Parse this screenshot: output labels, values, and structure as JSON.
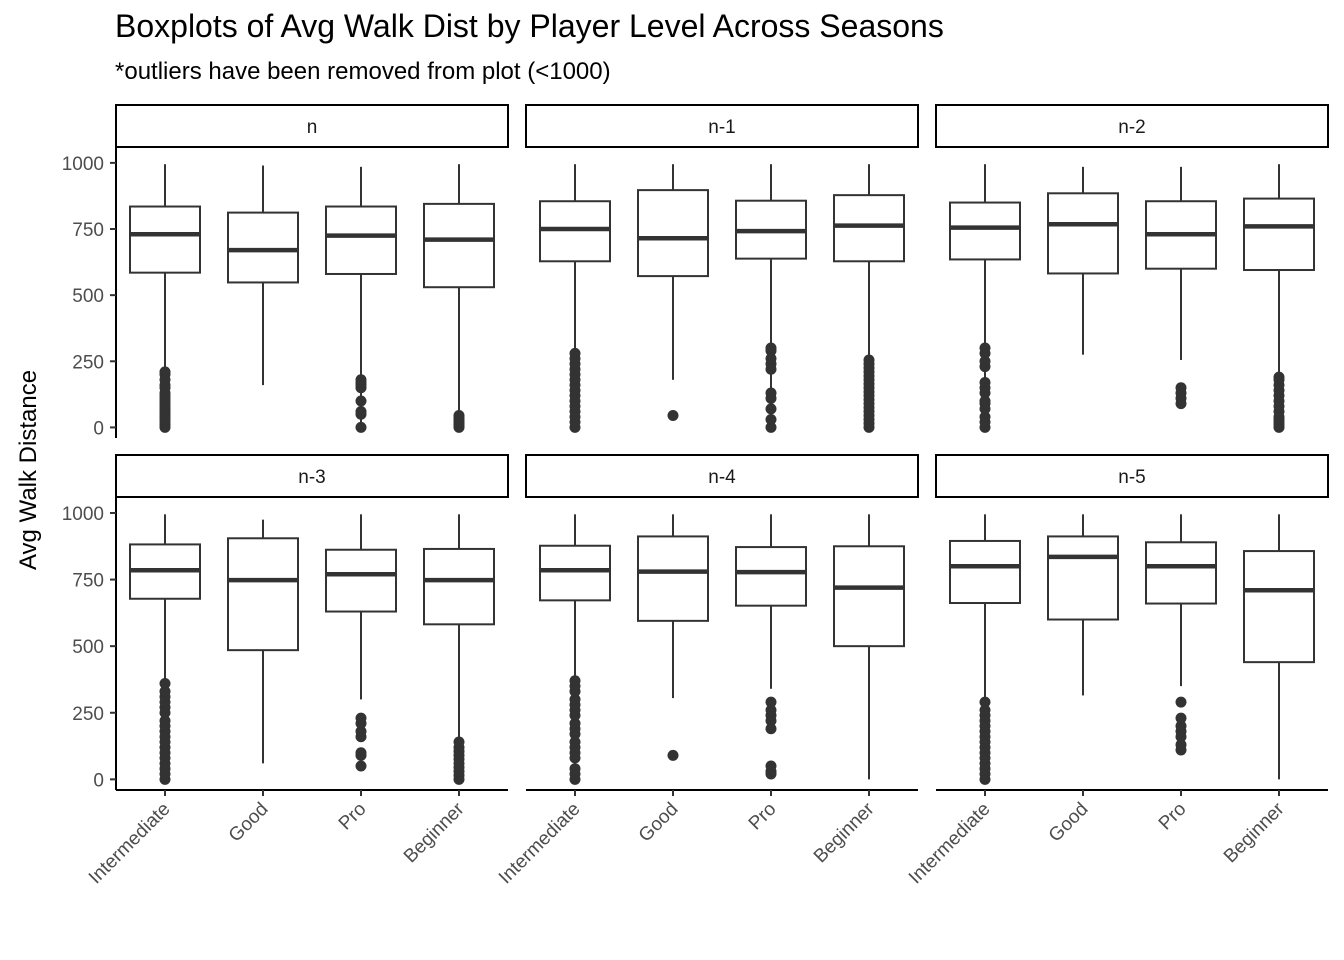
{
  "chart_data": {
    "type": "boxplot",
    "title": "Boxplots of Avg Walk Dist by Player Level Across Seasons",
    "subtitle": "*outliers have been removed from plot (<1000)",
    "ylabel": "Avg Walk Distance",
    "xlabel": "",
    "ylim": [
      -40,
      1060
    ],
    "yticks": [
      0,
      250,
      500,
      750,
      1000
    ],
    "categories": [
      "Intermediate",
      "Good",
      "Pro",
      "Beginner"
    ],
    "grid": false,
    "facets": [
      {
        "label": "n",
        "boxes": [
          {
            "category": "Intermediate",
            "min": 0,
            "q1": 585,
            "median": 730,
            "q3": 835,
            "max": 995,
            "outliers": [
              0,
              10,
              20,
              30,
              40,
              50,
              60,
              70,
              80,
              90,
              100,
              110,
              120,
              130,
              150,
              160,
              180,
              200,
              210
            ]
          },
          {
            "category": "Good",
            "min": 160,
            "q1": 548,
            "median": 670,
            "q3": 812,
            "max": 990,
            "outliers": []
          },
          {
            "category": "Pro",
            "min": 0,
            "q1": 580,
            "median": 725,
            "q3": 835,
            "max": 985,
            "outliers": [
              0,
              50,
              60,
              100,
              150,
              160,
              170,
              180
            ]
          },
          {
            "category": "Beginner",
            "min": 0,
            "q1": 530,
            "median": 710,
            "q3": 845,
            "max": 995,
            "outliers": [
              0,
              5,
              10,
              15,
              20,
              25,
              30,
              40,
              45
            ]
          }
        ]
      },
      {
        "label": "n-1",
        "boxes": [
          {
            "category": "Intermediate",
            "min": 0,
            "q1": 628,
            "median": 750,
            "q3": 855,
            "max": 995,
            "outliers": [
              0,
              20,
              40,
              60,
              80,
              100,
              120,
              140,
              160,
              180,
              200,
              220,
              240,
              260,
              280
            ]
          },
          {
            "category": "Good",
            "min": 180,
            "q1": 572,
            "median": 715,
            "q3": 897,
            "max": 995,
            "outliers": [
              45
            ]
          },
          {
            "category": "Pro",
            "min": 0,
            "q1": 638,
            "median": 742,
            "q3": 857,
            "max": 995,
            "outliers": [
              0,
              30,
              70,
              110,
              130,
              220,
              240,
              260,
              290,
              300
            ]
          },
          {
            "category": "Beginner",
            "min": 0,
            "q1": 628,
            "median": 763,
            "q3": 878,
            "max": 995,
            "outliers": [
              0,
              15,
              30,
              45,
              60,
              75,
              90,
              105,
              120,
              135,
              150,
              165,
              180,
              195,
              210,
              225,
              240,
              255
            ]
          }
        ]
      },
      {
        "label": "n-2",
        "boxes": [
          {
            "category": "Intermediate",
            "min": 0,
            "q1": 635,
            "median": 755,
            "q3": 850,
            "max": 995,
            "outliers": [
              0,
              20,
              40,
              70,
              90,
              100,
              130,
              150,
              170,
              230,
              250,
              280,
              300
            ]
          },
          {
            "category": "Good",
            "min": 275,
            "q1": 582,
            "median": 768,
            "q3": 885,
            "max": 985,
            "outliers": []
          },
          {
            "category": "Pro",
            "min": 255,
            "q1": 600,
            "median": 730,
            "q3": 855,
            "max": 985,
            "outliers": [
              90,
              110,
              130,
              150
            ]
          },
          {
            "category": "Beginner",
            "min": 0,
            "q1": 595,
            "median": 760,
            "q3": 865,
            "max": 995,
            "outliers": [
              0,
              10,
              20,
              30,
              40,
              60,
              80,
              100,
              120,
              140,
              160,
              180,
              190
            ]
          }
        ]
      },
      {
        "label": "n-3",
        "boxes": [
          {
            "category": "Intermediate",
            "min": 0,
            "q1": 678,
            "median": 785,
            "q3": 882,
            "max": 995,
            "outliers": [
              0,
              20,
              40,
              60,
              80,
              100,
              120,
              140,
              160,
              180,
              200,
              220,
              250,
              270,
              290,
              310,
              330,
              360
            ]
          },
          {
            "category": "Good",
            "min": 60,
            "q1": 485,
            "median": 748,
            "q3": 905,
            "max": 975,
            "outliers": []
          },
          {
            "category": "Pro",
            "min": 300,
            "q1": 630,
            "median": 770,
            "q3": 862,
            "max": 995,
            "outliers": [
              50,
              90,
              100,
              160,
              180,
              210,
              230
            ]
          },
          {
            "category": "Beginner",
            "min": 150,
            "q1": 582,
            "median": 748,
            "q3": 865,
            "max": 995,
            "outliers": [
              0,
              15,
              30,
              45,
              60,
              75,
              90,
              105,
              120,
              140
            ]
          }
        ]
      },
      {
        "label": "n-4",
        "boxes": [
          {
            "category": "Intermediate",
            "min": 0,
            "q1": 672,
            "median": 785,
            "q3": 877,
            "max": 995,
            "outliers": [
              0,
              20,
              40,
              80,
              100,
              120,
              140,
              170,
              190,
              210,
              240,
              260,
              280,
              300,
              330,
              350,
              370
            ]
          },
          {
            "category": "Good",
            "min": 305,
            "q1": 595,
            "median": 780,
            "q3": 912,
            "max": 995,
            "outliers": [
              90
            ]
          },
          {
            "category": "Pro",
            "min": 340,
            "q1": 652,
            "median": 778,
            "q3": 872,
            "max": 995,
            "outliers": [
              20,
              30,
              50,
              190,
              220,
              240,
              260,
              290
            ]
          },
          {
            "category": "Beginner",
            "min": 0,
            "q1": 500,
            "median": 720,
            "q3": 875,
            "max": 995,
            "outliers": []
          }
        ]
      },
      {
        "label": "n-5",
        "boxes": [
          {
            "category": "Intermediate",
            "min": 0,
            "q1": 662,
            "median": 800,
            "q3": 895,
            "max": 995,
            "outliers": [
              0,
              20,
              40,
              60,
              80,
              100,
              120,
              140,
              160,
              180,
              200,
              220,
              240,
              260,
              290
            ]
          },
          {
            "category": "Good",
            "min": 315,
            "q1": 600,
            "median": 835,
            "q3": 912,
            "max": 995,
            "outliers": []
          },
          {
            "category": "Pro",
            "min": 350,
            "q1": 660,
            "median": 800,
            "q3": 890,
            "max": 995,
            "outliers": [
              110,
              130,
              160,
              180,
              200,
              230,
              290
            ]
          },
          {
            "category": "Beginner",
            "min": 0,
            "q1": 440,
            "median": 710,
            "q3": 857,
            "max": 995,
            "outliers": []
          }
        ]
      }
    ]
  }
}
